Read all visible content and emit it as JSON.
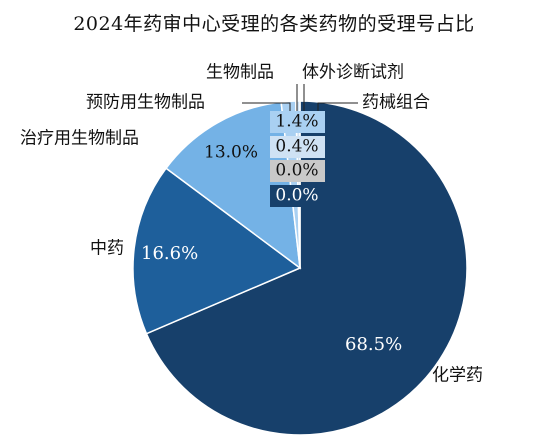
{
  "chart_data": {
    "type": "pie",
    "title": "2024年药审中心受理的各类药物的受理号占比",
    "slices": [
      {
        "label": "化学药",
        "value": 68.5,
        "value_label": "68.5%",
        "color": "#17406b"
      },
      {
        "label": "中药",
        "value": 16.6,
        "value_label": "16.6%",
        "color": "#1e5f9b"
      },
      {
        "label": "治疗用生物制品",
        "value": 13.0,
        "value_label": "13.0%",
        "color": "#74b2e6"
      },
      {
        "label": "预防用生物制品",
        "value": 1.4,
        "value_label": "1.4%",
        "color": "#a9d0f2"
      },
      {
        "label": "生物制品",
        "value": 0.4,
        "value_label": "0.4%",
        "color": "#cfe2f4"
      },
      {
        "label": "体外诊断试剂",
        "value": 0.0,
        "value_label": "0.0%",
        "color": "#c9c9c9"
      },
      {
        "label": "药械组合",
        "value": 0.0,
        "value_label": "0.0%",
        "color": "#17406b"
      }
    ],
    "legend": "none",
    "grid": false
  }
}
